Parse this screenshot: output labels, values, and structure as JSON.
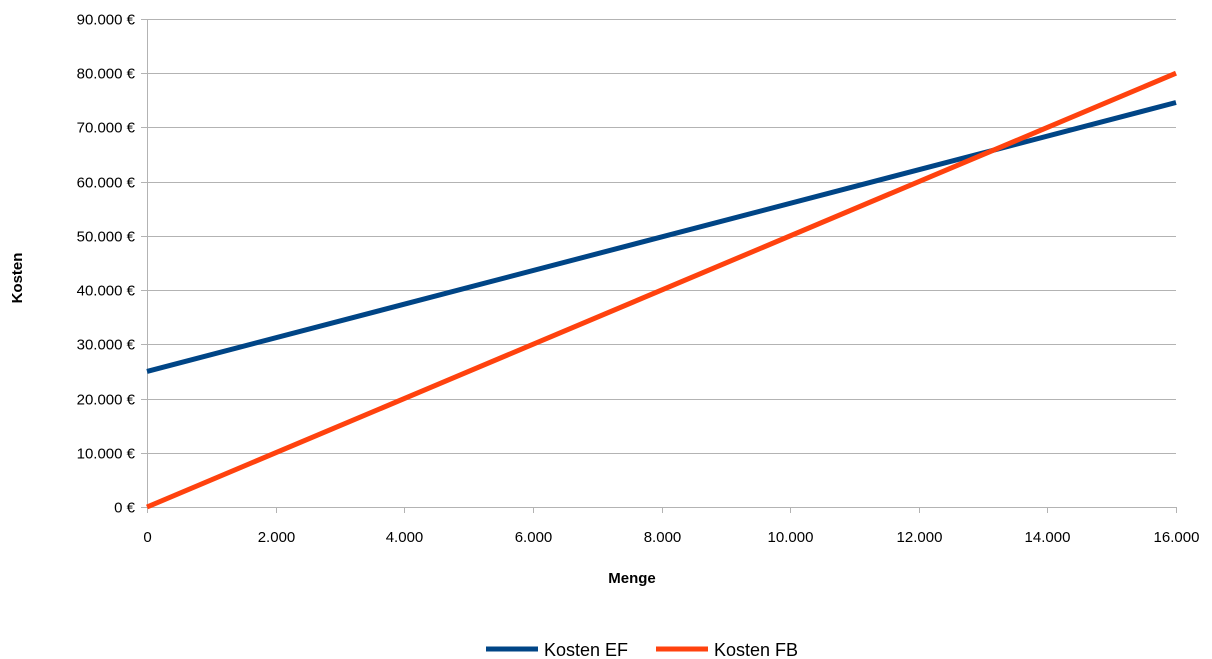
{
  "chart_data": {
    "type": "line",
    "xlabel": "Menge",
    "ylabel": "Kosten",
    "xlim": [
      0,
      16000
    ],
    "ylim": [
      0,
      90000
    ],
    "x_ticks": [
      0,
      2000,
      4000,
      6000,
      8000,
      10000,
      12000,
      14000,
      16000
    ],
    "x_tick_labels": [
      "0",
      "2.000",
      "4.000",
      "6.000",
      "8.000",
      "10.000",
      "12.000",
      "14.000",
      "16.000"
    ],
    "y_ticks": [
      0,
      10000,
      20000,
      30000,
      40000,
      50000,
      60000,
      70000,
      80000,
      90000
    ],
    "y_tick_labels": [
      "0 €",
      "10.000 €",
      "20.000 €",
      "30.000 €",
      "40.000 €",
      "50.000 €",
      "60.000 €",
      "70.000 €",
      "80.000 €",
      "90.000 €"
    ],
    "grid": "horizontal",
    "legend_position": "bottom",
    "series": [
      {
        "name": "Kosten EF",
        "color": "#004586",
        "x": [
          0,
          16000
        ],
        "y": [
          25000,
          74600
        ]
      },
      {
        "name": "Kosten FB",
        "color": "#ff420e",
        "x": [
          0,
          16000
        ],
        "y": [
          0,
          80000
        ]
      }
    ]
  }
}
